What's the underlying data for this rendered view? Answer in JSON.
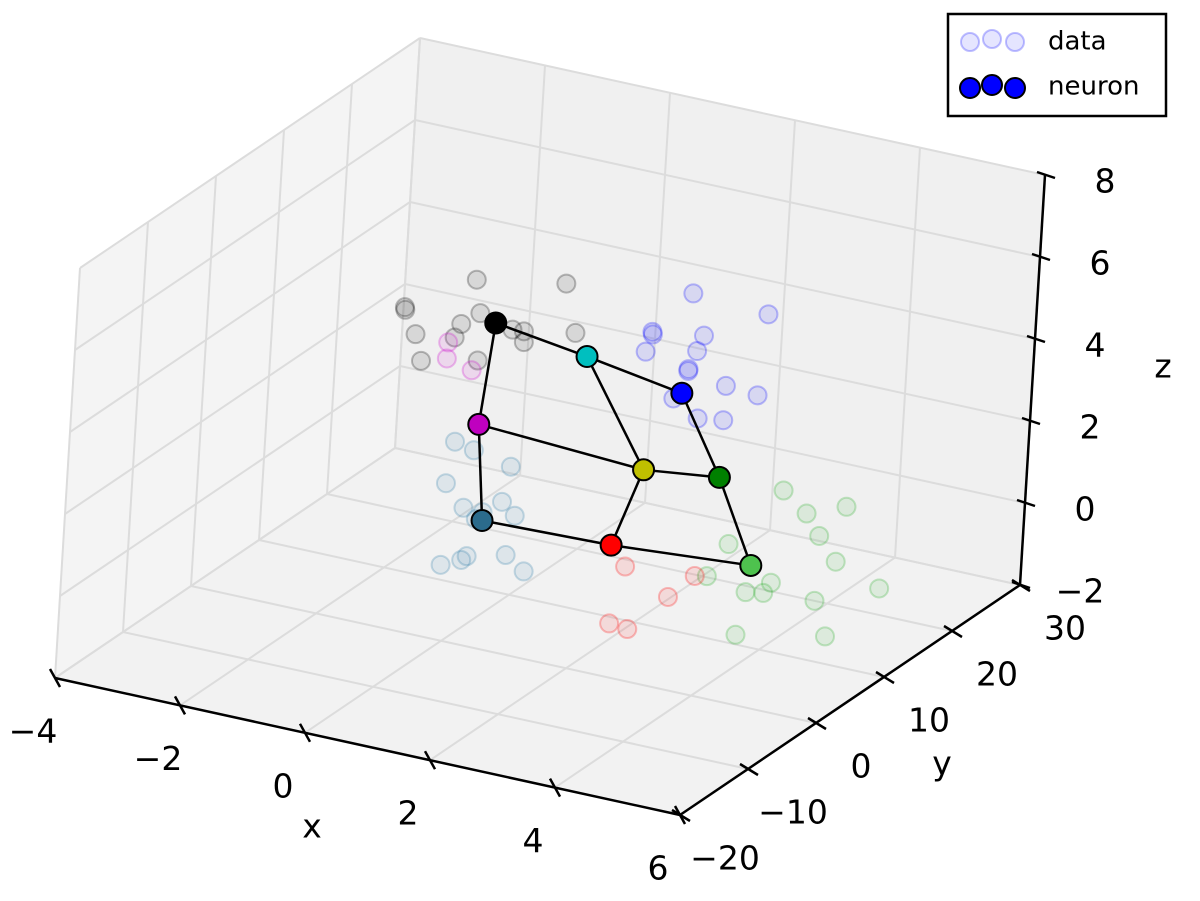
{
  "chart_data": {
    "type": "scatter3d",
    "xlabel": "x",
    "ylabel": "y",
    "zlabel": "z",
    "xlim": [
      -4,
      6
    ],
    "ylim": [
      -20,
      30
    ],
    "zlim": [
      -2,
      8
    ],
    "xticks": [
      {
        "value": -4,
        "label": "−4"
      },
      {
        "value": -2,
        "label": "−2"
      },
      0,
      2,
      4,
      6
    ],
    "yticks": [
      {
        "value": -20,
        "label": "−20"
      },
      {
        "value": -10,
        "label": "−10"
      },
      0,
      10,
      20,
      30
    ],
    "zticks": [
      {
        "value": -2,
        "label": "−2"
      },
      0,
      2,
      4,
      6,
      8
    ],
    "grid": true,
    "legend": "upper right",
    "series": [
      {
        "name": "data",
        "color": "#0000ff",
        "alpha": 0.1,
        "groups": [
          {
            "color": "#000000",
            "x": [
              -0.5,
              -1.2,
              0.3,
              -0.9,
              0.1,
              -1.5,
              0.6,
              -0.2,
              -0.8,
              0.4,
              -1.1,
              0.9,
              -0.4,
              0.0
            ],
            "y": [
              5,
              3,
              7,
              8,
              2,
              6,
              4,
              10,
              1,
              12,
              5,
              9,
              6,
              3
            ],
            "z": [
              5,
              5.4,
              4.6,
              4.2,
              5.8,
              4.9,
              5.3,
              4.4,
              5.1,
              5.5,
              3.9,
              4.8,
              6.0,
              4.5
            ]
          },
          {
            "color": "#0000ff",
            "x": [
              2.0,
              1.6,
              2.4,
              1.8,
              2.7,
              1.3,
              2.2,
              2.9,
              1.5,
              2.5,
              1.9,
              2.1,
              1.1,
              2.6
            ],
            "y": [
              16,
              14,
              18,
              20,
              15,
              17,
              12,
              19,
              22,
              13,
              17,
              15,
              18,
              21
            ],
            "z": [
              3.5,
              4.5,
              3.0,
              3.8,
              2.6,
              4.0,
              3.3,
              4.8,
              3.1,
              2.8,
              5.2,
              3.6,
              3.4,
              2.5
            ]
          },
          {
            "color": "#2a7aa8",
            "x": [
              -0.7,
              -1.0,
              -0.4,
              -0.9,
              -0.5,
              -0.2,
              -1.2,
              -0.6,
              -0.3,
              -0.8,
              -0.5,
              -1.0,
              -0.1,
              -0.7
            ],
            "y": [
              11,
              9,
              13,
              12,
              8,
              10,
              14,
              11,
              12,
              7,
              15,
              10,
              13,
              9
            ],
            "z": [
              -0.5,
              0.5,
              -1.5,
              1.0,
              -1.0,
              0.2,
              -2.0,
              -0.3,
              0.8,
              -1.2,
              -0.8,
              1.4,
              -1.8,
              0.0
            ]
          },
          {
            "color": "#22aa22",
            "x": [
              3.3,
              2.8,
              3.8,
              3.0,
              3.6,
              4.2,
              2.6,
              3.9,
              3.4,
              4.5,
              3.1,
              3.7,
              2.9,
              4.0
            ],
            "y": [
              18,
              16,
              20,
              22,
              14,
              19,
              21,
              17,
              24,
              23,
              15,
              25,
              12,
              20
            ],
            "z": [
              -1.5,
              -0.5,
              -2.0,
              0.2,
              -1.2,
              -0.8,
              -2.3,
              0.5,
              -1.0,
              -1.8,
              -2.5,
              -0.3,
              -0.8,
              -2.8
            ]
          },
          {
            "color": "#ff0000",
            "x": [
              1.6,
              2.1,
              1.9,
              2.4,
              1.3
            ],
            "y": [
              12,
              14,
              10,
              15,
              13
            ],
            "z": [
              -1.0,
              -1.8,
              -2.2,
              -1.3,
              -2.6
            ]
          },
          {
            "color": "#cc00cc",
            "x": [
              -0.9,
              -0.6,
              -1.1
            ],
            "y": [
              7,
              8,
              9
            ],
            "z": [
              3.8,
              3.5,
              3.9
            ]
          }
        ]
      },
      {
        "name": "neuron",
        "color": "#0000ff",
        "x": [
          -0.1,
          0.9,
          2.0,
          -0.6,
          1.5,
          2.2,
          -0.6,
          1.4,
          3.1
        ],
        "y": [
          6.4,
          11.0,
          15.2,
          9.6,
          14.9,
          19.8,
          11.0,
          11.6,
          16.7
        ],
        "z": [
          5,
          4,
          3,
          2,
          1,
          0.5,
          -0.5,
          -0.5,
          -1
        ],
        "colors": [
          "#000000",
          "#00bfbf",
          "#0000ff",
          "#bf00bf",
          "#bfbf00",
          "#008000",
          "#2b6b8c",
          "#ff0000",
          "#4ec24e"
        ]
      }
    ]
  }
}
